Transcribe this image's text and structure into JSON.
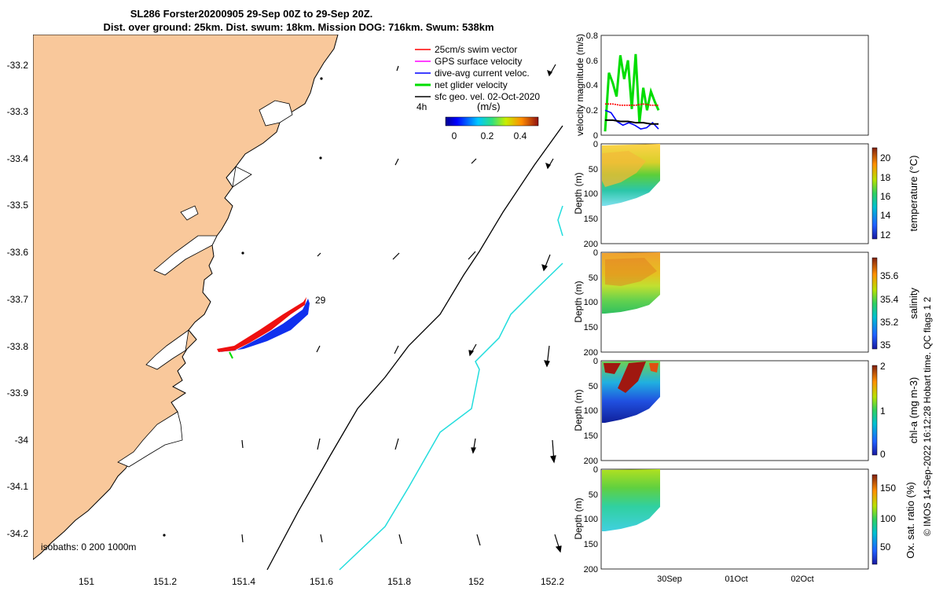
{
  "header": {
    "title": "SL286 Forster20200905 29-Sep 00Z to 29-Sep 20Z.",
    "subtitle": "Dist. over ground: 25km. Dist. swum: 18km. Mission DOG: 716km. Swum: 538km"
  },
  "map": {
    "x_ticks": [
      "151",
      "151.2",
      "151.4",
      "151.6",
      "151.8",
      "152",
      "152.2"
    ],
    "y_ticks": [
      "-33.2",
      "-33.3",
      "-33.4",
      "-33.5",
      "-33.6",
      "-33.7",
      "-33.8",
      "-33.9",
      "-34",
      "-34.1",
      "-34.2"
    ],
    "legend": [
      {
        "label": "25cm/s swim vector",
        "color": "#ff0000"
      },
      {
        "label": "GPS surface velocity",
        "color": "#ff00ff"
      },
      {
        "label": "dive-avg current veloc.",
        "color": "#0000ff"
      },
      {
        "label": "net glider velocity",
        "color": "#00dd00"
      },
      {
        "label": "sfc geo. vel. 02-Oct-2020",
        "color": "#000000"
      }
    ],
    "scale_label": "4h",
    "colorbar_label": "(m/s)",
    "colorbar_ticks": [
      "0",
      "0.2",
      "0.4"
    ],
    "day_label": "29",
    "isobaths_label": "isobaths: 0   200  1000m",
    "land_color": "#f9c89b"
  },
  "chart_data": [
    {
      "type": "line",
      "ylabel": "velocity magnitude (m/s)",
      "ylim": [
        0,
        0.8
      ],
      "y_ticks": [
        "0",
        "0.2",
        "0.4",
        "0.6",
        "0.8"
      ],
      "series_colors": [
        "#00dd00",
        "#ff0000",
        "#0000ff",
        "#000000"
      ],
      "series": [
        {
          "values": [
            0.03,
            0.5,
            0.42,
            0.31,
            0.64,
            0.45,
            0.6,
            0.21,
            0.65,
            0.1,
            0.38,
            0.2,
            0.35,
            0.27,
            0.2
          ]
        },
        {
          "values": [
            0.25,
            0.25,
            0.24,
            0.24,
            0.24,
            0.25,
            0.24,
            0.24
          ]
        },
        {
          "values": [
            0.2,
            0.18,
            0.11,
            0.08,
            0.1,
            0.08,
            0.05,
            0.06,
            0.1,
            0.05
          ]
        },
        {
          "values": [
            0.12,
            0.12,
            0.11,
            0.11,
            0.1,
            0.1,
            0.09,
            0.09
          ]
        }
      ]
    },
    {
      "type": "heatmap",
      "ylabel": "Depth (m)",
      "colorbar_label": "temperature (°C)",
      "colorbar_ticks": [
        "12",
        "14",
        "16",
        "18",
        "20"
      ],
      "y_ticks": [
        "0",
        "50",
        "100",
        "150",
        "200"
      ]
    },
    {
      "type": "heatmap",
      "ylabel": "Depth (m)",
      "colorbar_label": "salinity",
      "colorbar_ticks": [
        "35",
        "35.2",
        "35.4",
        "35.6"
      ],
      "y_ticks": [
        "0",
        "50",
        "100",
        "150",
        "200"
      ]
    },
    {
      "type": "heatmap",
      "ylabel": "Depth (m)",
      "colorbar_label": "chl-a (mg m-3)",
      "colorbar_ticks": [
        "0",
        "1",
        "2"
      ],
      "y_ticks": [
        "0",
        "50",
        "100",
        "150",
        "200"
      ]
    },
    {
      "type": "heatmap",
      "ylabel": "Depth (m)",
      "colorbar_label": "Ox. sat. ratio (%)",
      "colorbar_ticks": [
        "50",
        "100",
        "150"
      ],
      "y_ticks": [
        "0",
        "50",
        "100",
        "150",
        "200"
      ],
      "x_ticks": [
        "30Sep",
        "01Oct",
        "02Oct"
      ]
    }
  ],
  "footer": {
    "credit": "© IMOS 14-Sep-2022 16:12:28 Hobart time. QC flags 1  2"
  }
}
